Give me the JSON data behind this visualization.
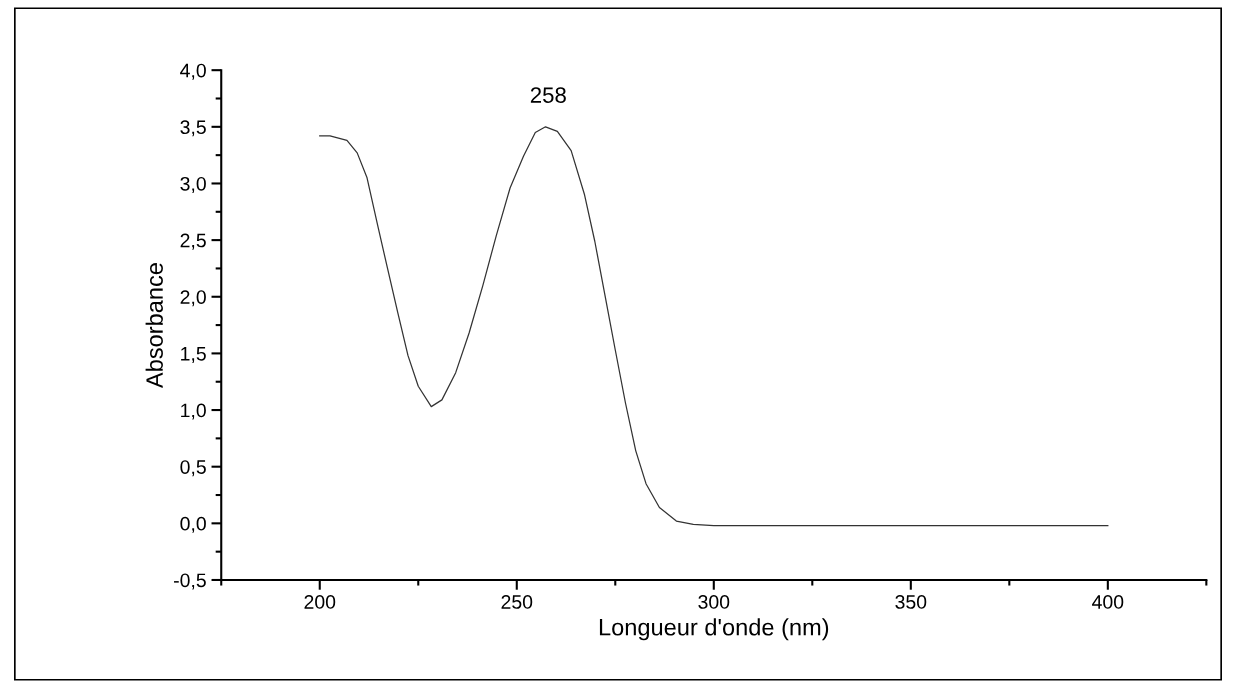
{
  "chart_data": {
    "type": "line",
    "xlabel": "Longueur d'onde (nm)",
    "ylabel": "Absorbance",
    "x": [
      200,
      202.6,
      206.9,
      209.5,
      212,
      214.7,
      217.2,
      219.8,
      222.4,
      225,
      228.3,
      231,
      234.5,
      237.9,
      241.4,
      244.8,
      248.3,
      251.7,
      254.7,
      257.3,
      260.3,
      263.8,
      267.2,
      269.8,
      272.4,
      275,
      277.6,
      280.2,
      282.8,
      286.2,
      290.5,
      294.8,
      300,
      340,
      400
    ],
    "series": [
      {
        "color": "#333333",
        "values": [
          3.42,
          3.42,
          3.38,
          3.27,
          3.05,
          2.63,
          2.25,
          1.86,
          1.48,
          1.21,
          1.03,
          1.09,
          1.33,
          1.68,
          2.1,
          2.54,
          2.96,
          3.24,
          3.45,
          3.5,
          3.46,
          3.29,
          2.9,
          2.49,
          2.01,
          1.53,
          1.06,
          0.64,
          0.35,
          0.14,
          0.02,
          -0.01,
          -0.02,
          -0.02,
          -0.02
        ]
      }
    ],
    "annotations": [
      {
        "text": "258",
        "x": 258,
        "y": 3.5
      }
    ],
    "xlim": [
      175,
      425
    ],
    "xticks": [
      {
        "value": 175,
        "label": null
      },
      200,
      {
        "value": 225,
        "label": null
      },
      250,
      {
        "value": 275,
        "label": null
      },
      300,
      {
        "value": 325,
        "label": null
      },
      350,
      {
        "value": 375,
        "label": null
      },
      400,
      {
        "value": 425,
        "label": null
      }
    ],
    "ylim": [
      -0.5,
      4.0
    ],
    "yticks": [
      {
        "value": -0.5,
        "label": "-0,5"
      },
      {
        "value": -0.25,
        "label": null
      },
      {
        "value": 0,
        "label": "0,0"
      },
      {
        "value": 0.25,
        "label": null
      },
      {
        "value": 0.5,
        "label": "0,5"
      },
      {
        "value": 0.75,
        "label": null
      },
      {
        "value": 1,
        "label": "1,0"
      },
      {
        "value": 1.25,
        "label": null
      },
      {
        "value": 1.5,
        "label": "1,5"
      },
      {
        "value": 1.75,
        "label": null
      },
      {
        "value": 2,
        "label": "2,0"
      },
      {
        "value": 2.25,
        "label": null
      },
      {
        "value": 2.5,
        "label": "2,5"
      },
      {
        "value": 2.75,
        "label": null
      },
      {
        "value": 3,
        "label": "3,0"
      },
      {
        "value": 3.25,
        "label": null
      },
      {
        "value": 3.5,
        "label": "3,5"
      },
      {
        "value": 3.75,
        "label": null
      },
      {
        "value": 4,
        "label": "4,0"
      }
    ],
    "grid": false,
    "legend": false,
    "marker": "none",
    "line_style": "solid"
  }
}
